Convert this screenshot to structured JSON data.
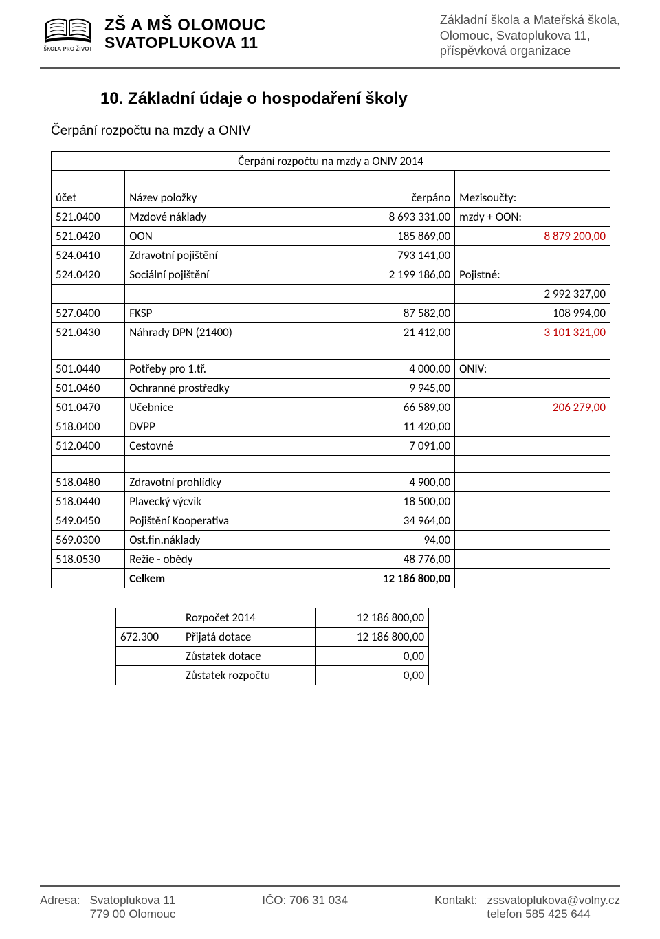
{
  "header": {
    "logo_caption": "ŠKOLA PRO ŽIVOT",
    "brand_line1": "ZŠ A MŠ OLOMOUC",
    "brand_line2": "SVATOPLUKOVA 11",
    "org_line1": "Základní škola a Mateřská škola,",
    "org_line2": "Olomouc, Svatoplukova 11,",
    "org_line3": "příspěvková organizace"
  },
  "section": {
    "title": "10. Základní údaje o hospodaření školy",
    "subtitle": "Čerpání rozpočtu na mzdy a ONIV"
  },
  "table": {
    "caption": "Čerpání rozpočtu na mzdy a ONIV 2014",
    "head": {
      "c1": "účet",
      "c2": "Název položky",
      "c3": "čerpáno",
      "c4": "Mezisoučty:"
    },
    "rows_a": [
      {
        "acc": "521.0400",
        "name": "Mzdové náklady",
        "val": "8 693 331,00",
        "note": "mzdy + OON:",
        "note_align": "left"
      },
      {
        "acc": "521.0420",
        "name": "OON",
        "val": "185 869,00",
        "note": "8 879 200,00",
        "red": true,
        "note_align": "right"
      },
      {
        "acc": "524.0410",
        "name": "Zdravotní pojištění",
        "val": "793 141,00",
        "note": "",
        "note_align": "right"
      },
      {
        "acc": "524.0420",
        "name": "Sociální pojištění",
        "val": "2 199 186,00",
        "note": "Pojistné:",
        "note_align": "left"
      },
      {
        "acc": "",
        "name": "",
        "val": "",
        "note": "2 992 327,00",
        "note_align": "right"
      },
      {
        "acc": "527.0400",
        "name": "FKSP",
        "val": "87 582,00",
        "note": "108 994,00",
        "note_align": "right"
      },
      {
        "acc": "521.0430",
        "name": "Náhrady DPN (21400)",
        "val": "21 412,00",
        "note": "3 101 321,00",
        "red": true,
        "note_align": "right"
      }
    ],
    "rows_b": [
      {
        "acc": "501.0440",
        "name": "Potřeby pro 1.tř.",
        "val": "4 000,00",
        "note": "ONIV:",
        "note_align": "left"
      },
      {
        "acc": "501.0460",
        "name": "Ochranné prostředky",
        "val": "9 945,00",
        "note": "",
        "note_align": "right"
      },
      {
        "acc": "501.0470",
        "name": "Učebnice",
        "val": "66 589,00",
        "note": "206 279,00",
        "red": true,
        "note_align": "right"
      },
      {
        "acc": "518.0400",
        "name": "DVPP",
        "val": "11 420,00",
        "note": "",
        "note_align": "right"
      },
      {
        "acc": "512.0400",
        "name": "Cestovné",
        "val": "7 091,00",
        "note": "",
        "note_align": "right"
      }
    ],
    "rows_c": [
      {
        "acc": "518.0480",
        "name": "Zdravotní prohlídky",
        "val": "4 900,00"
      },
      {
        "acc": "518.0440",
        "name": "Plavecký výcvik",
        "val": "18 500,00"
      },
      {
        "acc": "549.0450",
        "name": "Pojištění Kooperativa",
        "val": "34 964,00"
      },
      {
        "acc": "569.0300",
        "name": "Ost.fin.náklady",
        "val": "94,00"
      },
      {
        "acc": "518.0530",
        "name": "Režie - obědy",
        "val": "48 776,00"
      }
    ],
    "total": {
      "label": "Celkem",
      "val": "12 186 800,00"
    }
  },
  "summary": {
    "rows": [
      {
        "acc": "",
        "name": "Rozpočet 2014",
        "val": "12 186 800,00"
      },
      {
        "acc": "672.300",
        "name": "Přijatá dotace",
        "val": "12 186 800,00"
      },
      {
        "acc": "",
        "name": "Zůstatek dotace",
        "val": "0,00"
      },
      {
        "acc": "",
        "name": "Zůstatek rozpočtu",
        "val": "0,00"
      }
    ]
  },
  "footer": {
    "addr_label": "Adresa:",
    "addr_line1": "Svatoplukova 11",
    "addr_line2": "779 00 Olomouc",
    "ico_label": "IČO: 706 31 034",
    "contact_label": "Kontakt:",
    "contact_line1": "zssvatoplukova@volny.cz",
    "contact_line2": "telefon 585 425 644"
  },
  "style": {
    "page_bg": "#ffffff",
    "text_color": "#000000",
    "muted_text": "#4d4d4d",
    "accent_red": "#c00000",
    "rule_color": "#555555",
    "border_color": "#000000",
    "body_fontsize": 17,
    "title_fontsize": 24
  }
}
